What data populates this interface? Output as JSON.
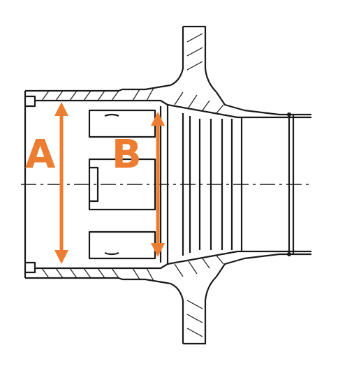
{
  "labels": {
    "a": "A",
    "b": "B"
  },
  "colors": {
    "accent": "#ED7D31",
    "line": "#1A1A1A",
    "background": "#FFFFFF"
  }
}
